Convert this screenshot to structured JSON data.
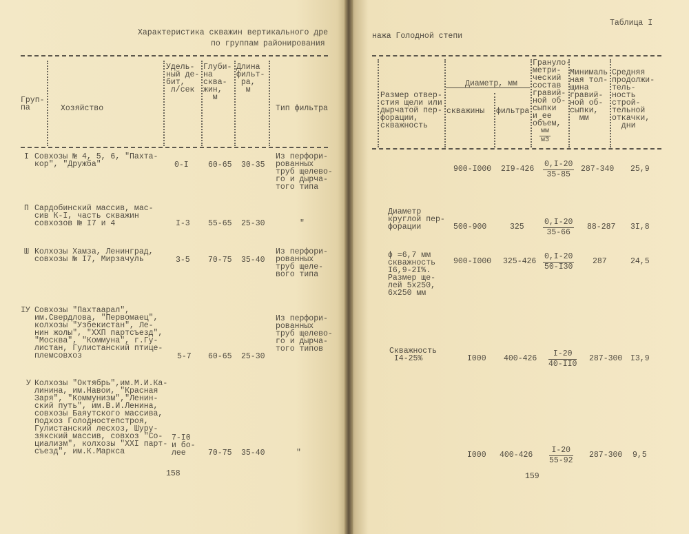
{
  "left_page": {
    "title_line1": "Характеристика скважин вертикального дре",
    "title_line2": "по группам районирования",
    "headers": {
      "group": "Груп-\nпа",
      "farm": "Хозяйство",
      "debit": "Удель-\nный де-\nбит,\n л/сек",
      "depth": "Глуби-\nна\nсква-\nжин,\n  м",
      "filter_length": "Длина\nфильт-\n ра,\n  м",
      "filter_type": "Тип фильтра"
    },
    "rows": [
      {
        "group": "I",
        "farm": "Совхозы № 4, 5, 6, \"Пахта-\nкор\", \"Дружба\"",
        "debit": "0-I",
        "depth": "60-65",
        "length": "30-35",
        "filter": "Из перфори-\nрованных\nтруб щелево-\nго и дырча-\nтого типа"
      },
      {
        "group": "П",
        "farm": "Сардобинский массив, мас-\nсив К-I, часть скважин\nсовхозов № I7 и 4",
        "debit": "I-3",
        "depth": "55-65",
        "length": "25-30",
        "filter": "\""
      },
      {
        "group": "Ш",
        "farm": "Колхозы Хамза, Ленинград,\nсовхозы № I7, Мирзачуль",
        "debit": "3-5",
        "depth": "70-75",
        "length": "35-40",
        "filter": "Из перфори-\nрованных\nтруб щеле-\nвого типа"
      },
      {
        "group": "IУ",
        "farm": "Совхозы \"Пахтаарал\",\nим.Свердлова, \"Первомаец\",\nколхозы \"Узбекистан\", Ле-\nнин жолы\", \"ХХП партсъезд\",\n\"Москва\", \"Коммуна\", г.Гу-\nлистан, Гулистанский птице-\nплемсовхоз",
        "debit": "5-7",
        "depth": "60-65",
        "length": "25-30",
        "filter": "Из перфори-\nрованных\nтруб щелево-\nго и дырча-\nтого типов"
      },
      {
        "group": "У",
        "farm": "Колхозы \"Октябрь\",им.М.И.Ка-\nлинина, им.Навои, \"Красная\nЗаря\", \"Коммунизм\",\"Ленин-\nский путь\", им.В.И.Ленина,\nсовхозы Баяутского массива,\nподхоз Голодностепстроя,\nГулистанский лесхоз, Шуру-\nзякский массив, совхоз \"Со-\nциализм\", колхозы \"ХХI парт-\nсъезд\", им.К.Маркса",
        "debit": "7-I0\nи бо-\nлее",
        "depth": "70-75",
        "length": "35-40",
        "filter": "\""
      }
    ],
    "page_number": "158"
  },
  "right_page": {
    "table_label": "Таблица I",
    "title_cont": "нажа Голодной степи",
    "headers": {
      "opening": "Размер отвер-\nстия щели или\nдырчатой пер-\nфорации,\nскважность",
      "diameter": "Диаметр, мм",
      "well": "скважины",
      "filter": "фильтра",
      "granulometric": "Грануло-\nметри-\nческий\nсостав\nгравий-\nной об-\nсыпки\nи ее\nобъем,",
      "gran_unit_num": "мм",
      "gran_unit_den": "м3",
      "min_thickness": "Минималь\nная тол-\nщина\nгравий-\nной об-\nсыпки,\n  мм",
      "avg_duration": "Средняя\nпродолжи-\nтель-\nность\nстрой-\nтельной\nоткачки,\n  дни"
    },
    "rows": [
      {
        "opening": "",
        "well": "900-I000",
        "filter": "2I9-426",
        "gran_num": "0,I-20",
        "gran_den": "35-85",
        "min": "287-340",
        "duration": "25,9"
      },
      {
        "opening": "Диаметр\nкруглой пер-\nфорации",
        "well": "500-900",
        "filter": "325",
        "gran_num": "0,I-20",
        "gran_den": "35-66",
        "min": "88-287",
        "duration": "3I,8"
      },
      {
        "opening": "ϕ =6,7 мм\nскважность\nI6,9-2I%.\nРазмер ще-\nлей 5х250,\n6х250 мм",
        "well": "900-I000",
        "filter": "325-426",
        "gran_num": "0,I-20",
        "gran_den": "50-I30",
        "min": "287",
        "duration": "24,5"
      },
      {
        "opening": "Скважность\n I4-25%",
        "well": "I000",
        "filter": "400-426",
        "gran_num": "I-20",
        "gran_den": "40-II0",
        "min": "287-300",
        "duration": "I3,9"
      },
      {
        "opening": "",
        "well": "I000",
        "filter": "400-426",
        "gran_num": "I-20",
        "gran_den": "55-92",
        "min": "287-300",
        "duration": "9,5"
      }
    ],
    "page_number": "159"
  },
  "colors": {
    "paper": "#f2e5bf",
    "ink": "#4f4a40",
    "gutter": "#5e513c"
  }
}
